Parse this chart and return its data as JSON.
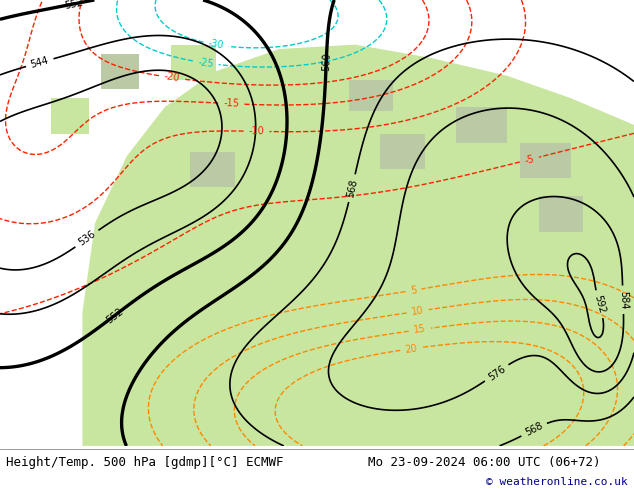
{
  "title_left": "Height/Temp. 500 hPa [gdmp][°C] ECMWF",
  "title_right": "Mo 23-09-2024 06:00 UTC (06+72)",
  "copyright": "© weatheronline.co.uk",
  "bg_color": "#ffffff",
  "map_bg": "#c8e8f8",
  "land_color": "#c8e6a0",
  "gray_color": "#aaaaaa",
  "contour_color_height": "#000000",
  "contour_color_temp_neg": "#ff2200",
  "contour_color_temp_pos": "#ff8800",
  "contour_color_temp_cyan": "#00cccc",
  "font_size_title": 9,
  "font_size_copyright": 8,
  "font_size_labels": 7
}
